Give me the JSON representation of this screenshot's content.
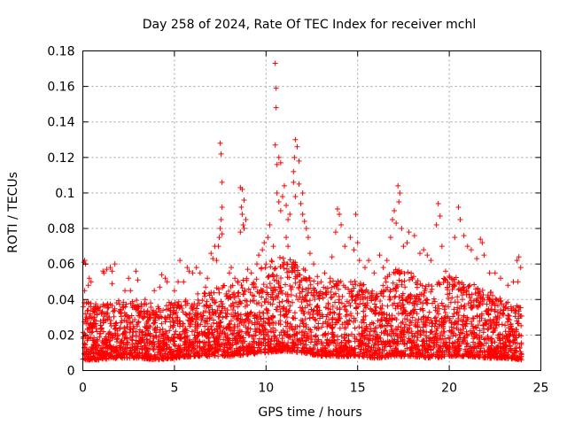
{
  "chart_data": {
    "type": "scatter",
    "title": "Day 258 of 2024, Rate Of TEC Index for receiver mchl",
    "xlabel": "GPS time / hours",
    "ylabel": "ROTI / TECUs",
    "xlim": [
      0,
      25
    ],
    "ylim": [
      0,
      0.18
    ],
    "x_ticks": [
      0,
      5,
      10,
      15,
      20,
      25
    ],
    "x_tick_labels": [
      "0",
      "5",
      "10",
      "15",
      "20",
      "25"
    ],
    "y_ticks": [
      0,
      0.02,
      0.04,
      0.06,
      0.08,
      0.1,
      0.12,
      0.14,
      0.16,
      0.18
    ],
    "y_tick_labels": [
      "0",
      "0.02",
      "0.04",
      "0.06",
      "0.08",
      "0.1",
      "0.12",
      "0.14",
      "0.16",
      "0.18"
    ],
    "grid": true,
    "marker": "+",
    "marker_color": "#ff0000",
    "series": [
      {
        "name": "ROTI",
        "points": [
          [
            0.05,
            0.061
          ],
          [
            0.1,
            0.062
          ],
          [
            0.15,
            0.06
          ],
          [
            0.1,
            0.045
          ],
          [
            0.2,
            0.038
          ],
          [
            0.3,
            0.048
          ],
          [
            0.35,
            0.052
          ],
          [
            0.45,
            0.05
          ],
          [
            1.1,
            0.056
          ],
          [
            1.15,
            0.055
          ],
          [
            1.3,
            0.057
          ],
          [
            1.5,
            0.058
          ],
          [
            1.6,
            0.056
          ],
          [
            1.6,
            0.049
          ],
          [
            1.75,
            0.06
          ],
          [
            2.3,
            0.045
          ],
          [
            2.5,
            0.052
          ],
          [
            2.6,
            0.045
          ],
          [
            2.9,
            0.056
          ],
          [
            3.0,
            0.051
          ],
          [
            3.4,
            0.04
          ],
          [
            3.9,
            0.045
          ],
          [
            4.2,
            0.047
          ],
          [
            4.3,
            0.054
          ],
          [
            4.5,
            0.052
          ],
          [
            4.6,
            0.05
          ],
          [
            4.1,
            0.036
          ],
          [
            3.7,
            0.038
          ],
          [
            5.0,
            0.045
          ],
          [
            5.3,
            0.062
          ],
          [
            5.2,
            0.05
          ],
          [
            5.5,
            0.05
          ],
          [
            5.7,
            0.058
          ],
          [
            5.8,
            0.056
          ],
          [
            6.0,
            0.055
          ],
          [
            6.2,
            0.058
          ],
          [
            6.4,
            0.055
          ],
          [
            6.7,
            0.047
          ],
          [
            6.8,
            0.052
          ],
          [
            7.0,
            0.066
          ],
          [
            7.1,
            0.063
          ],
          [
            7.3,
            0.062
          ],
          [
            7.2,
            0.07
          ],
          [
            7.5,
            0.128
          ],
          [
            7.55,
            0.122
          ],
          [
            7.6,
            0.106
          ],
          [
            7.6,
            0.092
          ],
          [
            7.55,
            0.085
          ],
          [
            7.5,
            0.08
          ],
          [
            7.45,
            0.075
          ],
          [
            7.4,
            0.07
          ],
          [
            7.6,
            0.077
          ],
          [
            8.1,
            0.058
          ],
          [
            8.0,
            0.055
          ],
          [
            8.3,
            0.052
          ],
          [
            8.6,
            0.103
          ],
          [
            8.7,
            0.102
          ],
          [
            8.8,
            0.096
          ],
          [
            8.65,
            0.092
          ],
          [
            8.7,
            0.088
          ],
          [
            8.75,
            0.082
          ],
          [
            8.8,
            0.08
          ],
          [
            8.6,
            0.078
          ],
          [
            8.9,
            0.085
          ],
          [
            9.0,
            0.057
          ],
          [
            9.2,
            0.055
          ],
          [
            9.5,
            0.06
          ],
          [
            9.6,
            0.065
          ],
          [
            9.8,
            0.068
          ],
          [
            9.9,
            0.072
          ],
          [
            10.0,
            0.06
          ],
          [
            10.1,
            0.075
          ],
          [
            10.2,
            0.082
          ],
          [
            10.3,
            0.062
          ],
          [
            10.4,
            0.07
          ],
          [
            10.5,
            0.173
          ],
          [
            10.55,
            0.159
          ],
          [
            10.55,
            0.148
          ],
          [
            10.5,
            0.127
          ],
          [
            10.6,
            0.116
          ],
          [
            10.7,
            0.12
          ],
          [
            10.8,
            0.117
          ],
          [
            10.6,
            0.1
          ],
          [
            10.7,
            0.095
          ],
          [
            10.8,
            0.09
          ],
          [
            10.9,
            0.098
          ],
          [
            11.0,
            0.104
          ],
          [
            11.1,
            0.093
          ],
          [
            11.2,
            0.085
          ],
          [
            11.1,
            0.075
          ],
          [
            11.2,
            0.07
          ],
          [
            11.3,
            0.088
          ],
          [
            11.5,
            0.112
          ],
          [
            11.6,
            0.13
          ],
          [
            11.7,
            0.126
          ],
          [
            11.55,
            0.12
          ],
          [
            11.8,
            0.118
          ],
          [
            11.5,
            0.106
          ],
          [
            11.6,
            0.098
          ],
          [
            11.8,
            0.105
          ],
          [
            11.9,
            0.094
          ],
          [
            12.0,
            0.088
          ],
          [
            12.0,
            0.1
          ],
          [
            12.1,
            0.084
          ],
          [
            12.2,
            0.08
          ],
          [
            12.3,
            0.075
          ],
          [
            12.4,
            0.066
          ],
          [
            12.6,
            0.06
          ],
          [
            12.8,
            0.053
          ],
          [
            13.0,
            0.05
          ],
          [
            13.2,
            0.055
          ],
          [
            13.5,
            0.052
          ],
          [
            13.6,
            0.064
          ],
          [
            13.8,
            0.078
          ],
          [
            13.9,
            0.091
          ],
          [
            14.0,
            0.088
          ],
          [
            14.1,
            0.082
          ],
          [
            14.3,
            0.07
          ],
          [
            14.6,
            0.075
          ],
          [
            14.8,
            0.068
          ],
          [
            14.9,
            0.088
          ],
          [
            15.0,
            0.072
          ],
          [
            15.1,
            0.062
          ],
          [
            15.4,
            0.058
          ],
          [
            15.6,
            0.062
          ],
          [
            15.9,
            0.055
          ],
          [
            16.2,
            0.065
          ],
          [
            16.4,
            0.058
          ],
          [
            16.6,
            0.062
          ],
          [
            16.8,
            0.075
          ],
          [
            16.9,
            0.085
          ],
          [
            17.0,
            0.09
          ],
          [
            17.1,
            0.083
          ],
          [
            17.2,
            0.104
          ],
          [
            17.3,
            0.1
          ],
          [
            17.25,
            0.095
          ],
          [
            17.4,
            0.08
          ],
          [
            17.5,
            0.07
          ],
          [
            17.7,
            0.072
          ],
          [
            17.8,
            0.078
          ],
          [
            18.1,
            0.076
          ],
          [
            18.4,
            0.066
          ],
          [
            18.6,
            0.068
          ],
          [
            18.8,
            0.065
          ],
          [
            19.0,
            0.062
          ],
          [
            19.4,
            0.094
          ],
          [
            19.5,
            0.087
          ],
          [
            19.3,
            0.082
          ],
          [
            19.6,
            0.07
          ],
          [
            19.8,
            0.056
          ],
          [
            20.3,
            0.075
          ],
          [
            20.5,
            0.092
          ],
          [
            20.6,
            0.085
          ],
          [
            20.8,
            0.076
          ],
          [
            21.0,
            0.07
          ],
          [
            21.2,
            0.068
          ],
          [
            21.5,
            0.063
          ],
          [
            21.7,
            0.074
          ],
          [
            21.8,
            0.072
          ],
          [
            21.9,
            0.065
          ],
          [
            22.2,
            0.055
          ],
          [
            22.5,
            0.055
          ],
          [
            22.8,
            0.052
          ],
          [
            23.2,
            0.048
          ],
          [
            23.5,
            0.05
          ],
          [
            23.7,
            0.062
          ],
          [
            23.8,
            0.064
          ],
          [
            23.9,
            0.058
          ],
          [
            23.75,
            0.05
          ]
        ],
        "band_envelope": {
          "hours": [
            0,
            1,
            2,
            3,
            4,
            5,
            6,
            7,
            8,
            9,
            10,
            11,
            12,
            13,
            14,
            15,
            16,
            17,
            18,
            19,
            20,
            21,
            22,
            23,
            24
          ],
          "upper": [
            0.04,
            0.037,
            0.04,
            0.04,
            0.035,
            0.04,
            0.044,
            0.045,
            0.05,
            0.052,
            0.06,
            0.066,
            0.058,
            0.048,
            0.052,
            0.05,
            0.046,
            0.058,
            0.055,
            0.048,
            0.054,
            0.05,
            0.046,
            0.04,
            0.036
          ],
          "lower": [
            0.006,
            0.006,
            0.007,
            0.007,
            0.006,
            0.007,
            0.008,
            0.008,
            0.008,
            0.009,
            0.01,
            0.011,
            0.01,
            0.008,
            0.008,
            0.008,
            0.007,
            0.008,
            0.008,
            0.007,
            0.008,
            0.008,
            0.007,
            0.007,
            0.006
          ]
        }
      }
    ]
  }
}
